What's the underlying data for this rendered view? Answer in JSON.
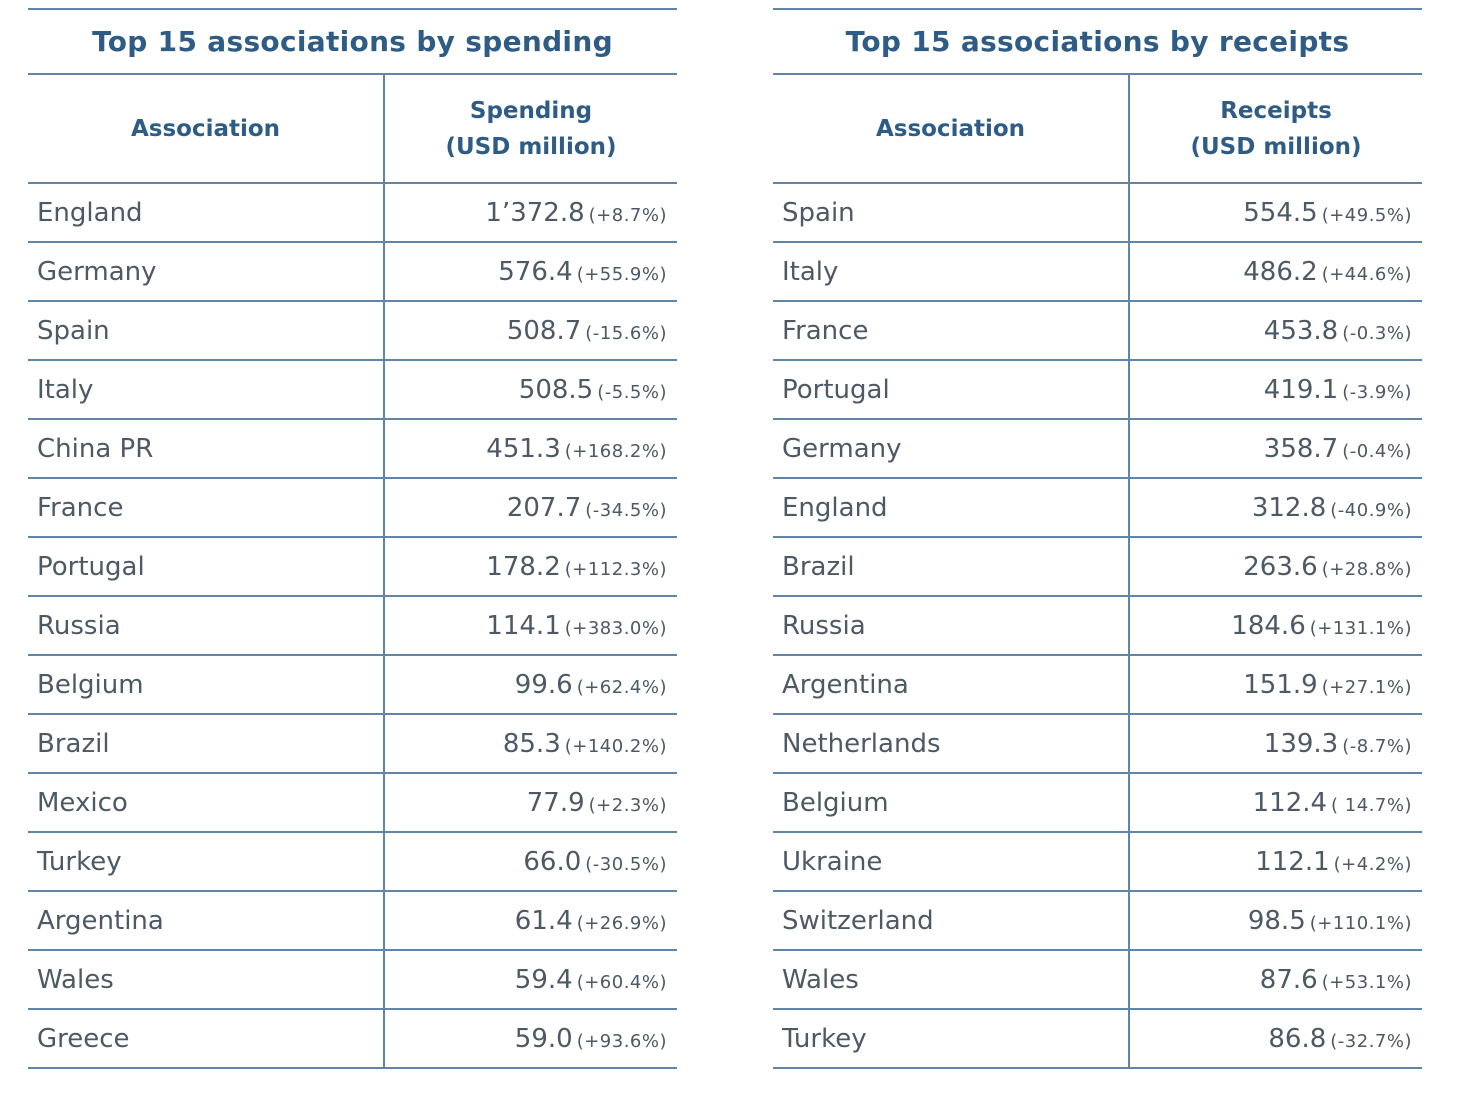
{
  "spending": {
    "title": "Top 15 associations by spending",
    "header_association": "Association",
    "header_value_line1": "Spending",
    "header_value_line2": "(USD million)",
    "rows": [
      {
        "association": "England",
        "value": "1’372.8",
        "change": "(+8.7%)"
      },
      {
        "association": "Germany",
        "value": "576.4",
        "change": "(+55.9%)"
      },
      {
        "association": "Spain",
        "value": "508.7",
        "change": "(-15.6%)"
      },
      {
        "association": "Italy",
        "value": "508.5",
        "change": "(-5.5%)"
      },
      {
        "association": "China PR",
        "value": "451.3",
        "change": "(+168.2%)"
      },
      {
        "association": "France",
        "value": "207.7",
        "change": "(-34.5%)"
      },
      {
        "association": "Portugal",
        "value": "178.2",
        "change": "(+112.3%)"
      },
      {
        "association": "Russia",
        "value": "114.1",
        "change": "(+383.0%)"
      },
      {
        "association": "Belgium",
        "value": "99.6",
        "change": "(+62.4%)"
      },
      {
        "association": "Brazil",
        "value": "85.3",
        "change": "(+140.2%)"
      },
      {
        "association": "Mexico",
        "value": "77.9",
        "change": "(+2.3%)"
      },
      {
        "association": "Turkey",
        "value": "66.0",
        "change": "(-30.5%)"
      },
      {
        "association": "Argentina",
        "value": "61.4",
        "change": "(+26.9%)"
      },
      {
        "association": "Wales",
        "value": "59.4",
        "change": "(+60.4%)"
      },
      {
        "association": "Greece",
        "value": "59.0",
        "change": "(+93.6%)"
      }
    ]
  },
  "receipts": {
    "title": "Top 15 associations by receipts",
    "header_association": "Association",
    "header_value_line1": "Receipts",
    "header_value_line2": "(USD million)",
    "rows": [
      {
        "association": "Spain",
        "value": "554.5",
        "change": "(+49.5%)"
      },
      {
        "association": "Italy",
        "value": "486.2",
        "change": "(+44.6%)"
      },
      {
        "association": "France",
        "value": "453.8",
        "change": "(-0.3%)"
      },
      {
        "association": "Portugal",
        "value": "419.1",
        "change": "(-3.9%)"
      },
      {
        "association": "Germany",
        "value": "358.7",
        "change": "(-0.4%)"
      },
      {
        "association": "England",
        "value": "312.8",
        "change": "(-40.9%)"
      },
      {
        "association": "Brazil",
        "value": "263.6",
        "change": "(+28.8%)"
      },
      {
        "association": "Russia",
        "value": "184.6",
        "change": "(+131.1%)"
      },
      {
        "association": "Argentina",
        "value": "151.9",
        "change": "(+27.1%)"
      },
      {
        "association": "Netherlands",
        "value": "139.3",
        "change": "(-8.7%)"
      },
      {
        "association": "Belgium",
        "value": "112.4",
        "change": "( 14.7%)"
      },
      {
        "association": "Ukraine",
        "value": "112.1",
        "change": "(+4.2%)"
      },
      {
        "association": "Switzerland",
        "value": "98.5",
        "change": "(+110.1%)"
      },
      {
        "association": "Wales",
        "value": "87.6",
        "change": "(+53.1%)"
      },
      {
        "association": "Turkey",
        "value": "86.8",
        "change": "(-32.7%)"
      }
    ]
  }
}
